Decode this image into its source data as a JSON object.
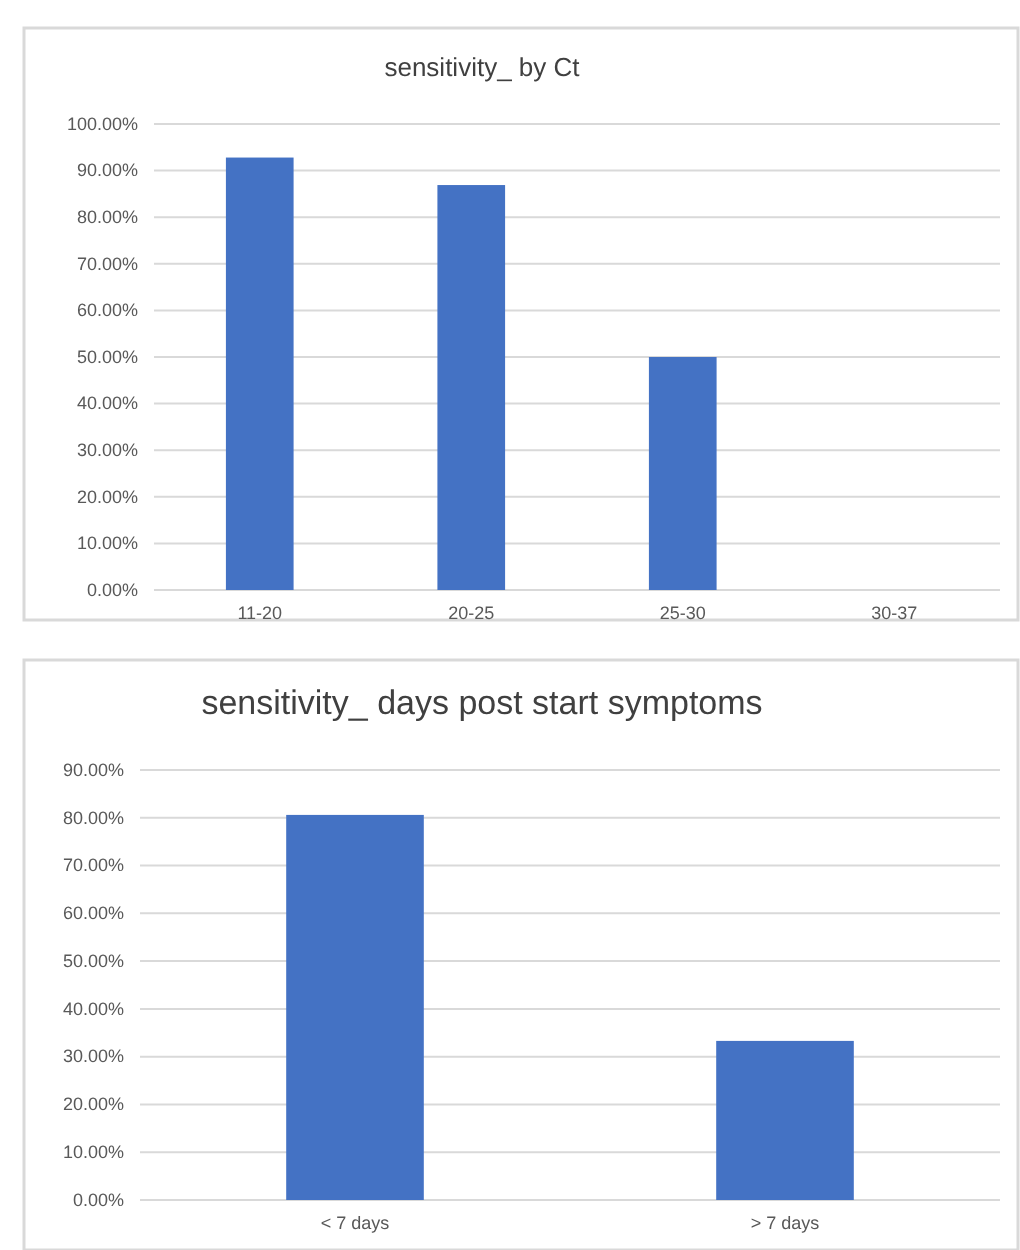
{
  "chart_data": [
    {
      "type": "bar",
      "title": "sensitivity_ by Ct",
      "categories": [
        "11-20",
        "20-25",
        "25-30",
        "30-37"
      ],
      "values": [
        92.8,
        86.9,
        50,
        0
      ],
      "color": "#4472c4",
      "ylim": [
        0,
        100
      ],
      "yticks": [
        {
          "value": 0,
          "label": "0.00%"
        },
        {
          "value": 10,
          "label": "10.00%"
        },
        {
          "value": 20,
          "label": "20.00%"
        },
        {
          "value": 30,
          "label": "30.00%"
        },
        {
          "value": 40,
          "label": "40.00%"
        },
        {
          "value": 50,
          "label": "50.00%"
        },
        {
          "value": 60,
          "label": "60.00%"
        },
        {
          "value": 70,
          "label": "70.00%"
        },
        {
          "value": 80,
          "label": "80.00%"
        },
        {
          "value": 90,
          "label": "90.00%"
        },
        {
          "value": 100,
          "label": "100.00%"
        }
      ],
      "grid": "y"
    },
    {
      "type": "bar",
      "title": "sensitivity_ days post start symptoms",
      "categories": [
        "< 7 days",
        "> 7 days"
      ],
      "values": [
        80.6,
        33.3
      ],
      "color": "#4472c4",
      "ylim": [
        0,
        90
      ],
      "yticks": [
        {
          "value": 0,
          "label": "0.00%"
        },
        {
          "value": 10,
          "label": "10.00%"
        },
        {
          "value": 20,
          "label": "20.00%"
        },
        {
          "value": 30,
          "label": "30.00%"
        },
        {
          "value": 40,
          "label": "40.00%"
        },
        {
          "value": 50,
          "label": "50.00%"
        },
        {
          "value": 60,
          "label": "60.00%"
        },
        {
          "value": 70,
          "label": "70.00%"
        },
        {
          "value": 80,
          "label": "80.00%"
        },
        {
          "value": 90,
          "label": "90.00%"
        }
      ],
      "grid": "y"
    }
  ]
}
